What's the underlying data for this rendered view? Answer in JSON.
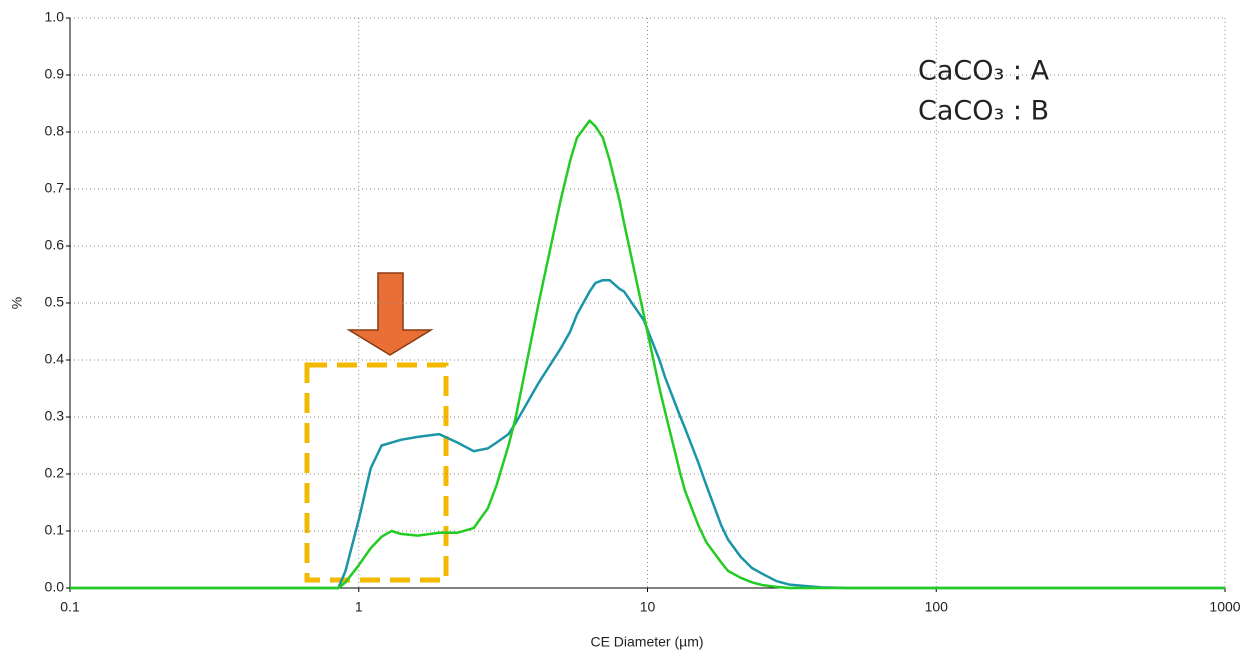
{
  "chart_data": {
    "type": "line",
    "x_label": "CE Diameter (µm)",
    "y_label": "%",
    "x_log": true,
    "grid": true,
    "legend": "upper right",
    "xlim": [
      0.1,
      1000
    ],
    "xticks": [
      0.1,
      1,
      10,
      100,
      1000
    ],
    "ylim": [
      0,
      1
    ],
    "yticks": [
      {
        "value": 0,
        "label": "0.0"
      },
      0.1,
      0.2,
      0.3,
      0.4,
      0.5,
      0.6,
      0.7,
      0.8,
      0.9,
      {
        "value": 1,
        "label": "1.0"
      }
    ],
    "x": [
      0.1,
      0.85,
      0.9,
      1.0,
      1.1,
      1.2,
      1.3,
      1.4,
      1.6,
      1.9,
      2.2,
      2.5,
      2.8,
      3.0,
      3.3,
      3.5,
      4.2,
      5.0,
      5.4,
      5.7,
      6.3,
      6.6,
      7.0,
      7.4,
      8.0,
      8.3,
      9.7,
      11,
      11.5,
      13,
      13.5,
      15,
      16,
      18,
      19,
      21,
      23,
      25,
      28,
      31,
      40,
      50,
      1000
    ],
    "series": [
      {
        "name": "CaCO₃ : A",
        "color": "#1a95a6",
        "values": [
          0,
          0,
          0.03,
          0.12,
          0.21,
          0.25,
          0.255,
          0.26,
          0.265,
          0.27,
          0.255,
          0.24,
          0.245,
          0.255,
          0.27,
          0.29,
          0.36,
          0.42,
          0.45,
          0.48,
          0.52,
          0.535,
          0.54,
          0.54,
          0.525,
          0.52,
          0.47,
          0.4,
          0.37,
          0.3,
          0.28,
          0.22,
          0.18,
          0.11,
          0.085,
          0.055,
          0.035,
          0.025,
          0.012,
          0.006,
          0.001,
          0,
          0
        ]
      },
      {
        "name": "CaCO₃ : B",
        "color": "#22cc22",
        "values": [
          0,
          0,
          0.01,
          0.04,
          0.07,
          0.09,
          0.1,
          0.095,
          0.092,
          0.097,
          0.097,
          0.105,
          0.14,
          0.18,
          0.25,
          0.3,
          0.5,
          0.68,
          0.75,
          0.79,
          0.82,
          0.81,
          0.79,
          0.75,
          0.68,
          0.64,
          0.48,
          0.35,
          0.31,
          0.2,
          0.17,
          0.11,
          0.08,
          0.045,
          0.03,
          0.018,
          0.01,
          0.005,
          0.002,
          0,
          0,
          0,
          0
        ]
      }
    ]
  }
}
